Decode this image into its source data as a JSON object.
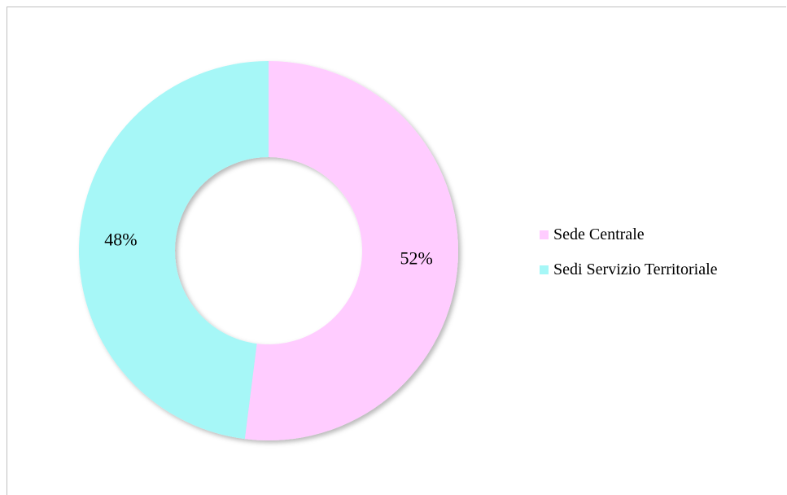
{
  "chart_data": {
    "type": "pie",
    "variant": "donut",
    "categories": [
      "Sede Centrale",
      "Sedi Servizio Territoriale"
    ],
    "values": [
      52,
      48
    ],
    "data_labels": [
      "52%",
      "48%"
    ],
    "colors": [
      "#FFCCFF",
      "#A6F7F7"
    ],
    "legend_position": "right",
    "title": ""
  }
}
